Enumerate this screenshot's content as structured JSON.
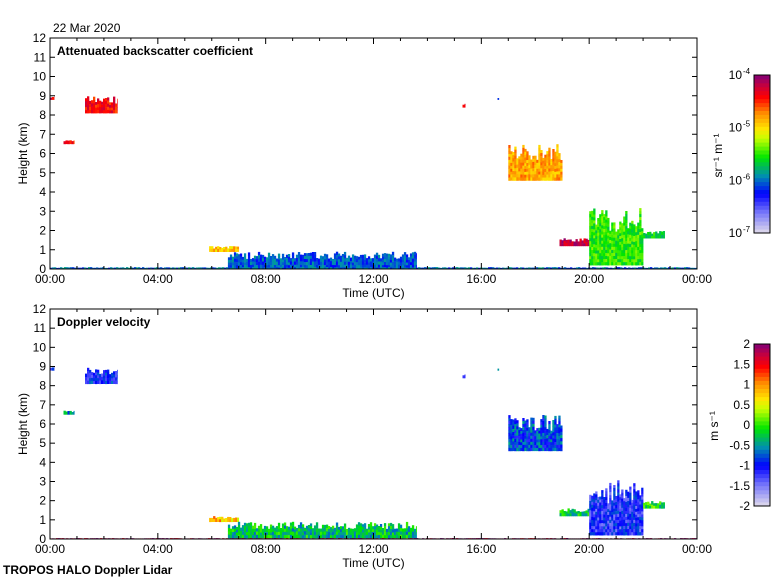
{
  "date_label": "22 Mar 2020",
  "footer": "TROPOS HALO Doppler Lidar",
  "chart_data": [
    {
      "type": "heatmap",
      "title": "Attenuated backscatter coefficient",
      "xlabel": "Time (UTC)",
      "ylabel": "Height (km)",
      "xlim": [
        0,
        24
      ],
      "ylim": [
        0,
        12
      ],
      "xticks": [
        0,
        4,
        8,
        12,
        16,
        20,
        24
      ],
      "xticklabels": [
        "00:00",
        "04:00",
        "08:00",
        "12:00",
        "16:00",
        "20:00",
        "00:00"
      ],
      "yticks": [
        0,
        1,
        2,
        3,
        4,
        5,
        6,
        7,
        8,
        9,
        10,
        11,
        12
      ],
      "colorbar": {
        "label": "sr-1 m-1",
        "scale": "log",
        "range": [
          -7,
          -4
        ],
        "ticks": [
          -7,
          -6,
          -5,
          -4
        ],
        "ticklabels": [
          "10",
          "10",
          "10",
          "10"
        ],
        "exponents": [
          "-7",
          "-6",
          "-5",
          "-4"
        ]
      },
      "features": [
        {
          "t": [
            0.0,
            0.15
          ],
          "h": [
            8.8,
            9.0
          ],
          "value": -4.35
        },
        {
          "t": [
            0.5,
            0.9
          ],
          "h": [
            6.5,
            6.7
          ],
          "value": -4.4
        },
        {
          "t": [
            1.3,
            2.5
          ],
          "h": [
            8.1,
            9.0
          ],
          "value": -4.4
        },
        {
          "t": [
            5.9,
            7.0
          ],
          "h": [
            0.9,
            1.2
          ],
          "value": -4.9
        },
        {
          "t": [
            6.6,
            13.6
          ],
          "h": [
            0.05,
            0.9
          ],
          "value": -6.05
        },
        {
          "t": [
            15.3,
            15.4
          ],
          "h": [
            8.4,
            8.6
          ],
          "value": -4.4
        },
        {
          "t": [
            16.6,
            16.65
          ],
          "h": [
            8.8,
            8.9
          ],
          "value": -6.0
        },
        {
          "t": [
            17.0,
            19.0
          ],
          "h": [
            4.6,
            6.5
          ],
          "value": -4.8
        },
        {
          "t": [
            18.9,
            20.2
          ],
          "h": [
            1.2,
            1.6
          ],
          "value": -4.2
        },
        {
          "t": [
            20.0,
            22.0
          ],
          "h": [
            0.2,
            3.2
          ],
          "value": -5.5
        },
        {
          "t": [
            22.0,
            22.8
          ],
          "h": [
            1.6,
            2.0
          ],
          "value": -5.6
        },
        {
          "t": [
            0.0,
            24.0
          ],
          "h": [
            0.0,
            0.1
          ],
          "value": -6.0
        }
      ]
    },
    {
      "type": "heatmap",
      "title": "Doppler velocity",
      "xlabel": "Time (UTC)",
      "ylabel": "Height (km)",
      "xlim": [
        0,
        24
      ],
      "ylim": [
        0,
        12
      ],
      "xticks": [
        0,
        4,
        8,
        12,
        16,
        20,
        24
      ],
      "xticklabels": [
        "00:00",
        "04:00",
        "08:00",
        "12:00",
        "16:00",
        "20:00",
        "00:00"
      ],
      "yticks": [
        0,
        1,
        2,
        3,
        4,
        5,
        6,
        7,
        8,
        9,
        10,
        11,
        12
      ],
      "colorbar": {
        "label": "m s-1",
        "scale": "linear",
        "range": [
          -2,
          2
        ],
        "ticks": [
          -2,
          -1.5,
          -1,
          -0.5,
          0,
          0.5,
          1,
          1.5,
          2
        ],
        "ticklabels": [
          "-2",
          "-1.5",
          "-1",
          "-0.5",
          "0",
          "0.5",
          "1",
          "1.5",
          "2"
        ]
      },
      "features": [
        {
          "t": [
            0.0,
            0.15
          ],
          "h": [
            8.8,
            9.0
          ],
          "value": -1.0
        },
        {
          "t": [
            0.5,
            0.9
          ],
          "h": [
            6.5,
            6.7
          ],
          "value": -0.6
        },
        {
          "t": [
            1.3,
            2.5
          ],
          "h": [
            8.1,
            9.0
          ],
          "value": -1.0
        },
        {
          "t": [
            5.9,
            7.0
          ],
          "h": [
            0.9,
            1.2
          ],
          "value": 0.8
        },
        {
          "t": [
            6.6,
            13.6
          ],
          "h": [
            0.05,
            0.9
          ],
          "value": -0.3
        },
        {
          "t": [
            15.3,
            15.4
          ],
          "h": [
            8.4,
            8.6
          ],
          "value": -1.1
        },
        {
          "t": [
            16.6,
            16.65
          ],
          "h": [
            8.8,
            8.9
          ],
          "value": -0.5
        },
        {
          "t": [
            17.0,
            19.0
          ],
          "h": [
            4.6,
            6.5
          ],
          "value": -0.8
        },
        {
          "t": [
            18.9,
            20.2
          ],
          "h": [
            1.2,
            1.6
          ],
          "value": -0.2
        },
        {
          "t": [
            20.0,
            22.0
          ],
          "h": [
            0.2,
            3.2
          ],
          "value": -1.1
        },
        {
          "t": [
            22.0,
            22.8
          ],
          "h": [
            1.6,
            2.0
          ],
          "value": -0.1
        },
        {
          "t": [
            0.0,
            24.0
          ],
          "h": [
            0.0,
            0.05
          ],
          "value": 1.9
        }
      ]
    }
  ]
}
